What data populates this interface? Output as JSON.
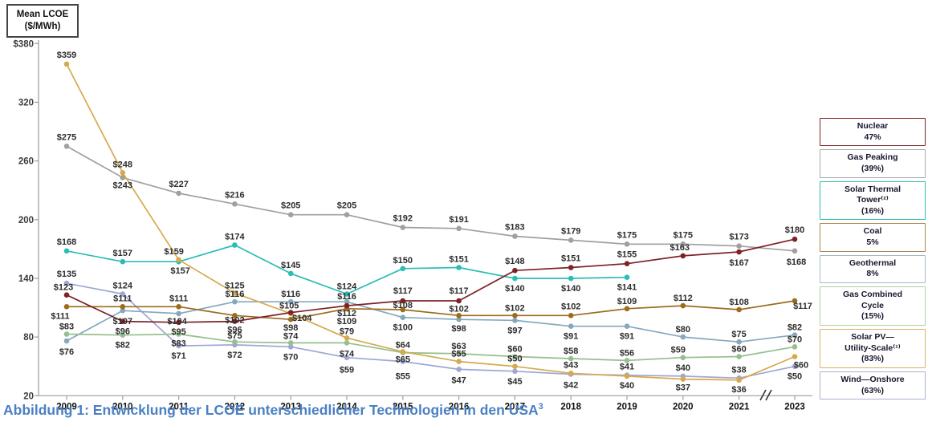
{
  "header_box": {
    "line1": "Mean LCOE",
    "line2": "($/MWh)"
  },
  "caption": {
    "text": "Abbildung 1: Entwicklung der LCOE unterschiedlicher Technologien in den USA",
    "superscript": "3"
  },
  "chart_data": {
    "type": "line",
    "title": "Mean LCOE ($/MWh) development of different technologies in the USA",
    "x_labels": [
      "2009",
      "2010",
      "2011",
      "2012",
      "2013",
      "2014",
      "2015",
      "2016",
      "2017",
      "2018",
      "2019",
      "2020",
      "2021",
      "2023"
    ],
    "x_axis_break_between": [
      "2021",
      "2023"
    ],
    "y_axis": {
      "ticks": [
        {
          "label": "$380",
          "value": 380
        },
        {
          "label": "320",
          "value": 320
        },
        {
          "label": "260",
          "value": 260
        },
        {
          "label": "200",
          "value": 200
        },
        {
          "label": "140",
          "value": 140
        },
        {
          "label": "80",
          "value": 80
        },
        {
          "label": "20",
          "value": 20
        }
      ],
      "min": 20,
      "max": 380,
      "grid": false
    },
    "legend_position": "right",
    "label_prefix": "$",
    "series": [
      {
        "key": "gas_peaking",
        "name": "Gas Peaking",
        "color": "#a0a0a0",
        "values": [
          275,
          243,
          227,
          216,
          205,
          205,
          192,
          191,
          183,
          179,
          175,
          175,
          173,
          168
        ],
        "label_offsets": [
          [
            0,
            -8
          ],
          [
            0,
            13
          ],
          [
            0,
            -8
          ],
          [
            0,
            -8
          ],
          [
            0,
            -8
          ],
          [
            0,
            -8
          ],
          [
            0,
            -8
          ],
          [
            0,
            -8
          ],
          [
            0,
            -8
          ],
          [
            0,
            -8
          ],
          [
            0,
            -8
          ],
          [
            0,
            -8
          ],
          [
            0,
            -8
          ],
          [
            2,
            17
          ]
        ]
      },
      {
        "key": "solar_thermal",
        "name": "Solar Thermal Tower",
        "color": "#2abdb4",
        "values": [
          168,
          157,
          157,
          174,
          145,
          124,
          150,
          151,
          140,
          140,
          141,
          null,
          null,
          null
        ],
        "label_offsets": [
          [
            0,
            -8
          ],
          [
            0,
            -7
          ],
          [
            2,
            15
          ],
          [
            0,
            -7
          ],
          [
            0,
            -7
          ],
          [
            0,
            -6
          ],
          [
            0,
            -7
          ],
          [
            0,
            -7
          ],
          [
            0,
            16
          ],
          [
            0,
            16
          ],
          [
            0,
            16
          ],
          null,
          null,
          null
        ]
      },
      {
        "key": "wind",
        "name": "Wind—Onshore",
        "color": "#9ea7d4",
        "values": [
          135,
          124,
          71,
          72,
          70,
          59,
          55,
          47,
          45,
          42,
          41,
          40,
          38,
          50
        ],
        "label_offsets": [
          [
            0,
            -8
          ],
          [
            0,
            -7
          ],
          [
            0,
            16
          ],
          [
            0,
            16
          ],
          [
            0,
            16
          ],
          [
            0,
            19
          ],
          [
            0,
            22
          ],
          [
            0,
            17
          ],
          [
            0,
            16
          ],
          [
            0,
            17
          ],
          [
            0,
            -7
          ],
          [
            0,
            -7
          ],
          [
            0,
            -7
          ],
          [
            0,
            16
          ]
        ]
      },
      {
        "key": "geothermal",
        "name": "Geothermal",
        "color": "#86a8be",
        "values": [
          76,
          107,
          104,
          116,
          116,
          116,
          100,
          98,
          97,
          91,
          91,
          80,
          75,
          82
        ],
        "label_offsets": [
          [
            0,
            17
          ],
          [
            0,
            17
          ],
          [
            -2,
            13
          ],
          [
            0,
            -6
          ],
          [
            0,
            -6
          ],
          [
            0,
            -3
          ],
          [
            0,
            16
          ],
          [
            0,
            15
          ],
          [
            0,
            16
          ],
          [
            0,
            16
          ],
          [
            0,
            16
          ],
          [
            0,
            -6
          ],
          [
            0,
            -6
          ],
          [
            0,
            -6
          ]
        ]
      },
      {
        "key": "gas_cc",
        "name": "Gas Combined Cycle",
        "color": "#96bf8d",
        "values": [
          83,
          82,
          83,
          75,
          74,
          74,
          64,
          63,
          60,
          58,
          56,
          59,
          60,
          70
        ],
        "label_offsets": [
          [
            0,
            -6
          ],
          [
            0,
            16
          ],
          [
            0,
            15
          ],
          [
            0,
            -4
          ],
          [
            0,
            -5
          ],
          [
            0,
            17
          ],
          [
            0,
            -6
          ],
          [
            0,
            -6
          ],
          [
            0,
            -6
          ],
          [
            0,
            -6
          ],
          [
            0,
            -6
          ],
          [
            -6,
            -6
          ],
          [
            0,
            -6
          ],
          [
            0,
            -6
          ]
        ]
      },
      {
        "key": "solar_pv",
        "name": "Solar PV—Utility-Scale",
        "color": "#d7a94d",
        "values": [
          359,
          248,
          159,
          125,
          104,
          79,
          65,
          55,
          50,
          43,
          40,
          37,
          36,
          60
        ],
        "label_offsets": [
          [
            0,
            -8
          ],
          [
            0,
            -7
          ],
          [
            -6,
            -7
          ],
          [
            0,
            -6
          ],
          [
            14,
            9
          ],
          [
            0,
            -5
          ],
          [
            0,
            13
          ],
          [
            0,
            -6
          ],
          [
            0,
            -6
          ],
          [
            0,
            -7
          ],
          [
            0,
            15
          ],
          [
            0,
            14
          ],
          [
            0,
            15
          ],
          [
            8,
            14
          ]
        ]
      },
      {
        "key": "coal",
        "name": "Coal",
        "color": "#9c6b1c",
        "values": [
          111,
          111,
          111,
          102,
          98,
          109,
          108,
          102,
          102,
          102,
          109,
          112,
          108,
          117
        ],
        "label_offsets": [
          [
            -8,
            15
          ],
          [
            0,
            -7
          ],
          [
            0,
            -7
          ],
          [
            0,
            9
          ],
          [
            0,
            14
          ],
          [
            0,
            19
          ],
          [
            0,
            -2
          ],
          [
            0,
            -5
          ],
          [
            0,
            -6
          ],
          [
            0,
            -8
          ],
          [
            0,
            -6
          ],
          [
            0,
            -6
          ],
          [
            0,
            -6
          ],
          [
            10,
            10
          ]
        ]
      },
      {
        "key": "nuclear",
        "name": "Nuclear",
        "color": "#7e2228",
        "values": [
          123,
          96,
          95,
          96,
          105,
          112,
          117,
          117,
          148,
          151,
          155,
          163,
          167,
          180
        ],
        "label_offsets": [
          [
            -4,
            -6
          ],
          [
            0,
            16
          ],
          [
            0,
            15
          ],
          [
            0,
            14
          ],
          [
            -2,
            -5
          ],
          [
            0,
            13
          ],
          [
            0,
            -9
          ],
          [
            0,
            -9
          ],
          [
            0,
            -8
          ],
          [
            0,
            -8
          ],
          [
            0,
            -8
          ],
          [
            -4,
            -7
          ],
          [
            0,
            17
          ],
          [
            0,
            -8
          ]
        ]
      }
    ]
  },
  "legend": [
    {
      "key": "nuclear",
      "color": "#7e2228",
      "lines": [
        "Nuclear",
        "47%"
      ]
    },
    {
      "key": "gas_peaking",
      "color": "#a8a8a8",
      "lines": [
        "Gas Peaking",
        "(39%)"
      ]
    },
    {
      "key": "solar_thermal",
      "color": "#2abdb4",
      "lines": [
        "Solar Thermal",
        "Tower⁽²⁾",
        "(16%)"
      ]
    },
    {
      "key": "coal",
      "color": "#b08448",
      "lines": [
        "Coal",
        "5%"
      ]
    },
    {
      "key": "geothermal",
      "color": "#a3bccb",
      "lines": [
        "Geothermal",
        "8%"
      ]
    },
    {
      "key": "gas_cc",
      "color": "#afd0a5",
      "lines": [
        "Gas Combined",
        "Cycle",
        "(15%)"
      ]
    },
    {
      "key": "solar_pv",
      "color": "#ddb264",
      "lines": [
        "Solar PV—",
        "Utility-Scale⁽¹⁾",
        "(83%)"
      ]
    },
    {
      "key": "wind",
      "color": "#a9b0d4",
      "lines": [
        "Wind—Onshore",
        "(63%)"
      ]
    }
  ]
}
